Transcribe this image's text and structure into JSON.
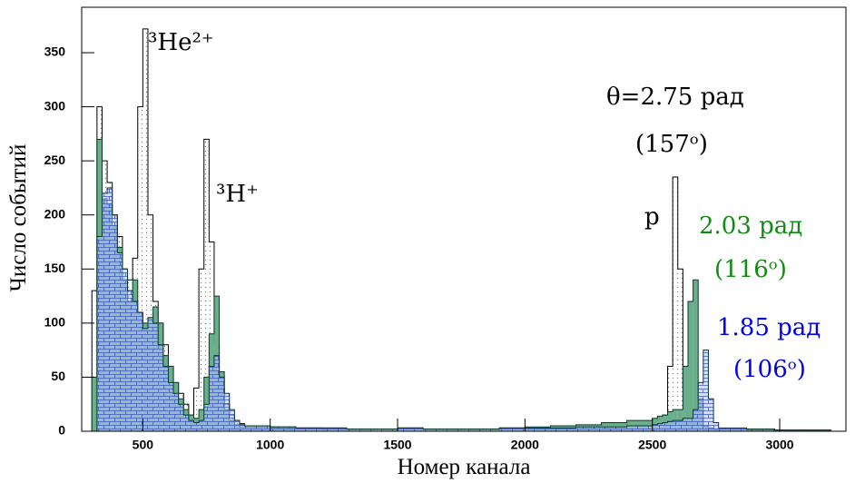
{
  "chart_data": {
    "type": "histogram",
    "x_label": "Номер канала",
    "y_label": "Число событий",
    "xlim": [
      260,
      3260
    ],
    "ylim": [
      0,
      392
    ],
    "xticks": [
      500,
      1000,
      1500,
      2000,
      2500,
      3000
    ],
    "yticks": [
      0,
      50,
      100,
      150,
      200,
      250,
      300,
      350
    ],
    "bins": [
      300,
      320,
      340,
      360,
      380,
      400,
      420,
      440,
      460,
      480,
      500,
      520,
      540,
      560,
      580,
      600,
      620,
      640,
      660,
      680,
      700,
      720,
      740,
      760,
      780,
      800,
      820,
      840,
      860,
      880,
      900,
      1000,
      1100,
      1200,
      1300,
      1400,
      1500,
      1600,
      1700,
      1800,
      1900,
      2000,
      2100,
      2200,
      2300,
      2400,
      2500,
      2520,
      2540,
      2560,
      2580,
      2600,
      2620,
      2640,
      2660,
      2680,
      2700,
      2720,
      2740,
      2760,
      2870,
      2980,
      3090,
      3200
    ],
    "series": [
      {
        "name": "θ=2.75 рад",
        "color": "#000000",
        "fill": "dots",
        "values": [
          130,
          300,
          250,
          230,
          200,
          180,
          150,
          140,
          160,
          300,
          372,
          200,
          120,
          100,
          80,
          60,
          45,
          35,
          25,
          15,
          40,
          150,
          270,
          175,
          80,
          40,
          25,
          15,
          10,
          7,
          5,
          4,
          3,
          3,
          2,
          2,
          3,
          2,
          2,
          2,
          3,
          3,
          3,
          4,
          5,
          8,
          10,
          12,
          15,
          60,
          235,
          150,
          40,
          10,
          5,
          3,
          2,
          2,
          2,
          2,
          2,
          1,
          1
        ]
      },
      {
        "name": "2.03 рад",
        "color": "#138a13",
        "fill": "#6aae8c",
        "values": [
          50,
          270,
          215,
          210,
          190,
          170,
          140,
          120,
          140,
          110,
          100,
          105,
          115,
          100,
          70,
          60,
          45,
          30,
          20,
          15,
          12,
          20,
          50,
          90,
          125,
          55,
          20,
          10,
          6,
          4,
          4,
          3,
          3,
          2,
          2,
          2,
          3,
          2,
          2,
          2,
          3,
          4,
          5,
          6,
          8,
          10,
          12,
          14,
          15,
          18,
          20,
          20,
          60,
          120,
          140,
          30,
          5,
          3,
          2,
          2,
          1,
          1,
          1
        ]
      },
      {
        "name": "1.85 рад",
        "color": "#0000ee",
        "fill": "bricks",
        "values": [
          0,
          180,
          220,
          225,
          200,
          165,
          150,
          130,
          120,
          110,
          95,
          105,
          100,
          80,
          60,
          45,
          35,
          25,
          15,
          10,
          8,
          10,
          25,
          60,
          70,
          50,
          35,
          20,
          10,
          6,
          5,
          4,
          3,
          3,
          2,
          2,
          3,
          2,
          2,
          2,
          3,
          3,
          3,
          4,
          4,
          5,
          6,
          7,
          8,
          9,
          10,
          10,
          12,
          12,
          20,
          45,
          75,
          30,
          8,
          3,
          2,
          1,
          1
        ]
      }
    ],
    "annotations": [
      "³He²⁺",
      "³H⁺",
      "p",
      "(157ᵒ)",
      "(116ᵒ)",
      "(106ᵒ)"
    ]
  }
}
